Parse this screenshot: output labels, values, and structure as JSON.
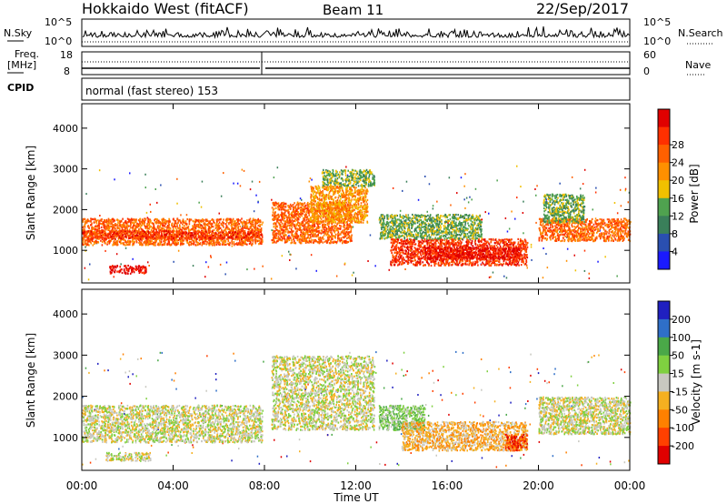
{
  "header": {
    "title": "Hokkaido West (fitACF)",
    "beam": "Beam 11",
    "date": "22/Sep/2017"
  },
  "summary_panel": {
    "nsky_label": "N.Sky",
    "nsky_ticks": [
      "10^5",
      "10^0"
    ],
    "nsearch_label": "N.Search",
    "nsearch_ticks": [
      "10^5",
      "10^0"
    ],
    "freq_label": "Freq.",
    "freq_unit": "[MHz]",
    "freq_ticks": [
      "18",
      "8"
    ],
    "nave_label": "Nave",
    "nave_ticks": [
      "60",
      "0"
    ],
    "cpid_label": "CPID",
    "cpid_text": "normal (fast stereo) 153"
  },
  "chart_data": [
    {
      "type": "heatmap",
      "name": "power",
      "ylabel": "Slant Range [km]",
      "ylim": [
        200,
        4600
      ],
      "yticks": [
        1000,
        2000,
        3000,
        4000
      ],
      "xlim": [
        0,
        24
      ],
      "x_ticks": [
        0,
        4,
        8,
        12,
        16,
        20,
        24
      ],
      "colorbar": {
        "label": "Power [dB]",
        "ticks": [
          "4",
          "8",
          "12",
          "16",
          "20",
          "24",
          "28"
        ],
        "colors": [
          "#1a1aff",
          "#2a4fb0",
          "#3a7f5a",
          "#4fa24f",
          "#f0c000",
          "#ff9000",
          "#ff6000",
          "#ff3000",
          "#e00000"
        ]
      },
      "regions": [
        {
          "t0": 0.0,
          "t1": 7.9,
          "r0": 1150,
          "r1": 1800,
          "level": 6
        },
        {
          "t0": 0.0,
          "t1": 7.9,
          "r0": 1300,
          "r1": 1500,
          "level": 7
        },
        {
          "t0": 1.2,
          "t1": 2.8,
          "r0": 450,
          "r1": 650,
          "level": 8
        },
        {
          "t0": 8.3,
          "t1": 11.8,
          "r0": 1200,
          "r1": 2200,
          "level": 6
        },
        {
          "t0": 10.0,
          "t1": 12.5,
          "r0": 1700,
          "r1": 2600,
          "level": 5
        },
        {
          "t0": 10.5,
          "t1": 12.8,
          "r0": 2600,
          "r1": 3000,
          "level": 3
        },
        {
          "t0": 13.5,
          "t1": 19.5,
          "r0": 650,
          "r1": 1300,
          "level": 7
        },
        {
          "t0": 15.0,
          "t1": 19.2,
          "r0": 800,
          "r1": 1100,
          "level": 8
        },
        {
          "t0": 13.0,
          "t1": 17.5,
          "r0": 1300,
          "r1": 1900,
          "level": 3
        },
        {
          "t0": 20.0,
          "t1": 24.0,
          "r0": 1250,
          "r1": 1800,
          "level": 6
        },
        {
          "t0": 20.2,
          "t1": 22.0,
          "r0": 1700,
          "r1": 2400,
          "level": 3
        }
      ]
    },
    {
      "type": "heatmap",
      "name": "velocity",
      "ylabel": "Slant Range [km]",
      "xlabel": "Time UT",
      "ylim": [
        200,
        4600
      ],
      "yticks": [
        1000,
        2000,
        3000,
        4000
      ],
      "xlim": [
        0,
        24
      ],
      "x_ticks": [
        0,
        4,
        8,
        12,
        16,
        20,
        24
      ],
      "x_tick_labels": [
        "00:00",
        "04:00",
        "08:00",
        "12:00",
        "16:00",
        "20:00",
        "00:00"
      ],
      "colorbar": {
        "label": "Velocity [m s-1]",
        "ticks": [
          "200",
          "100",
          "50",
          "15",
          "-15",
          "-50",
          "-100",
          "-200"
        ],
        "colors": [
          "#2020c0",
          "#2f6fc8",
          "#4aa848",
          "#7fd040",
          "#c8c8c0",
          "#f5b020",
          "#ff8000",
          "#ff4000",
          "#e00000"
        ]
      },
      "regions": [
        {
          "t0": 0.0,
          "t1": 7.9,
          "r0": 900,
          "r1": 1800,
          "level": 4
        },
        {
          "t0": 8.3,
          "t1": 12.8,
          "r0": 1200,
          "r1": 3000,
          "level": 4
        },
        {
          "t0": 13.0,
          "t1": 15.0,
          "r0": 1200,
          "r1": 1800,
          "level": 3
        },
        {
          "t0": 14.0,
          "t1": 19.5,
          "r0": 700,
          "r1": 1400,
          "level": 5
        },
        {
          "t0": 18.5,
          "t1": 19.5,
          "r0": 700,
          "r1": 1100,
          "level": 7
        },
        {
          "t0": 20.0,
          "t1": 24.0,
          "r0": 1100,
          "r1": 2000,
          "level": 4
        },
        {
          "t0": 1.0,
          "t1": 3.0,
          "r0": 450,
          "r1": 650,
          "level": 4
        }
      ]
    }
  ]
}
